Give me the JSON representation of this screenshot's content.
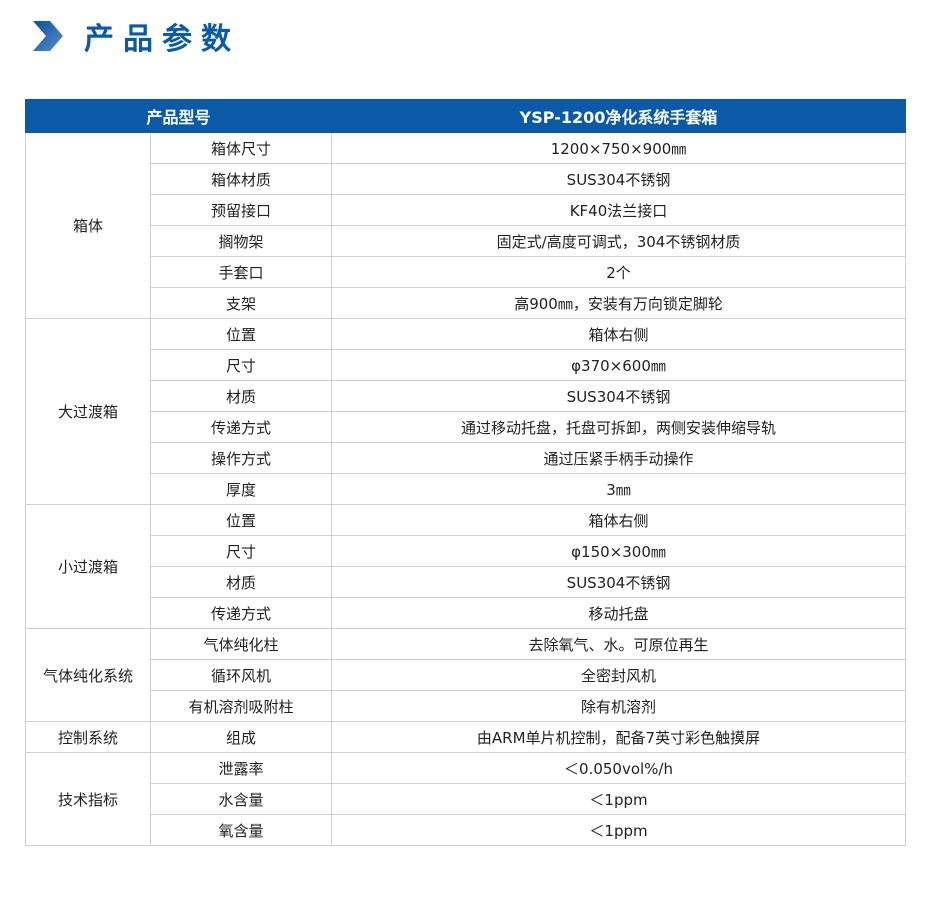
{
  "title": "产品参数",
  "header": {
    "model_label": "产品型号",
    "model_value": "YSP-1200净化系统手套箱"
  },
  "groups": [
    {
      "name": "箱体",
      "rows": [
        [
          "箱体尺寸",
          "1200×750×900㎜"
        ],
        [
          "箱体材质",
          "SUS304不锈钢"
        ],
        [
          "预留接口",
          "KF40法兰接口"
        ],
        [
          "搁物架",
          "固定式/高度可调式，304不锈钢材质"
        ],
        [
          "手套口",
          "2个"
        ],
        [
          "支架",
          "高900㎜，安装有万向锁定脚轮"
        ]
      ]
    },
    {
      "name": "大过渡箱",
      "rows": [
        [
          "位置",
          "箱体右侧"
        ],
        [
          "尺寸",
          "φ370×600㎜"
        ],
        [
          "材质",
          "SUS304不锈钢"
        ],
        [
          "传递方式",
          "通过移动托盘，托盘可拆卸，两侧安装伸缩导轨"
        ],
        [
          "操作方式",
          "通过压紧手柄手动操作"
        ],
        [
          "厚度",
          "3㎜"
        ]
      ]
    },
    {
      "name": "小过渡箱",
      "rows": [
        [
          "位置",
          "箱体右侧"
        ],
        [
          "尺寸",
          "φ150×300㎜"
        ],
        [
          "材质",
          "SUS304不锈钢"
        ],
        [
          "传递方式",
          "移动托盘"
        ]
      ]
    },
    {
      "name": "气体纯化系统",
      "rows": [
        [
          "气体纯化柱",
          "去除氧气、水。可原位再生"
        ],
        [
          "循环风机",
          "全密封风机"
        ],
        [
          "有机溶剂吸附柱",
          "除有机溶剂"
        ]
      ]
    },
    {
      "name": "控制系统",
      "rows": [
        [
          "组成",
          "由ARM单片机控制，配备7英寸彩色触摸屏"
        ]
      ]
    },
    {
      "name": "技术指标",
      "rows": [
        [
          "泄露率",
          "＜0.050vol%/h"
        ],
        [
          "水含量",
          "＜1ppm"
        ],
        [
          "氧含量",
          "＜1ppm"
        ]
      ]
    }
  ]
}
